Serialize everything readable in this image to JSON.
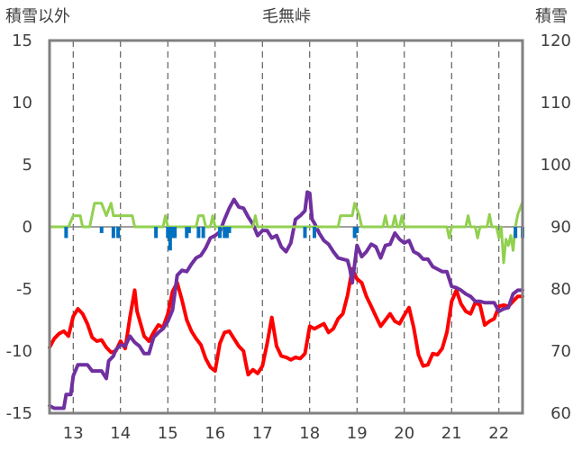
{
  "chart_data": {
    "type": "line",
    "title": "毛無峠",
    "left_axis": {
      "label": "積雪以外",
      "min": -15,
      "max": 15,
      "ticks": [
        15,
        10,
        5,
        0,
        -5,
        -10,
        -15
      ]
    },
    "right_axis": {
      "label": "積雪",
      "min": 60,
      "max": 120,
      "ticks": [
        120,
        110,
        100,
        90,
        80,
        70,
        60
      ]
    },
    "x_axis": {
      "min": 12.5,
      "max": 22.5,
      "ticks": [
        13,
        14,
        15,
        16,
        17,
        18,
        19,
        20,
        21,
        22
      ]
    },
    "grid": {
      "vertical": "dashed",
      "horizontal": "none"
    },
    "zero_line": {
      "y": 0,
      "color": "#808080"
    },
    "series": [
      {
        "color": "#ff0000",
        "axis": "left",
        "kind": "line",
        "points": [
          [
            12.5,
            -9.7
          ],
          [
            12.6,
            -9.0
          ],
          [
            12.7,
            -8.6
          ],
          [
            12.8,
            -8.4
          ],
          [
            12.9,
            -8.8
          ],
          [
            13.0,
            -7.2
          ],
          [
            13.1,
            -6.6
          ],
          [
            13.2,
            -7.0
          ],
          [
            13.3,
            -7.8
          ],
          [
            13.4,
            -8.9
          ],
          [
            13.5,
            -9.2
          ],
          [
            13.6,
            -9.1
          ],
          [
            13.7,
            -9.7
          ],
          [
            13.8,
            -10.1
          ],
          [
            13.9,
            -10.0
          ],
          [
            14.0,
            -9.2
          ],
          [
            14.1,
            -9.8
          ],
          [
            14.2,
            -7.3
          ],
          [
            14.3,
            -5.1
          ],
          [
            14.35,
            -6.8
          ],
          [
            14.5,
            -8.8
          ],
          [
            14.6,
            -9.2
          ],
          [
            14.7,
            -8.5
          ],
          [
            14.8,
            -7.9
          ],
          [
            14.9,
            -8.1
          ],
          [
            15.0,
            -7.0
          ],
          [
            15.1,
            -5.2
          ],
          [
            15.2,
            -4.5
          ],
          [
            15.3,
            -5.9
          ],
          [
            15.4,
            -7.5
          ],
          [
            15.5,
            -8.4
          ],
          [
            15.6,
            -9.0
          ],
          [
            15.7,
            -9.5
          ],
          [
            15.8,
            -10.6
          ],
          [
            15.9,
            -11.3
          ],
          [
            16.0,
            -11.6
          ],
          [
            16.1,
            -9.4
          ],
          [
            16.2,
            -8.5
          ],
          [
            16.3,
            -8.4
          ],
          [
            16.4,
            -9.0
          ],
          [
            16.5,
            -9.6
          ],
          [
            16.6,
            -10.0
          ],
          [
            16.65,
            -11.0
          ],
          [
            16.7,
            -11.9
          ],
          [
            16.8,
            -11.5
          ],
          [
            16.9,
            -11.8
          ],
          [
            17.0,
            -11.2
          ],
          [
            17.1,
            -9.4
          ],
          [
            17.2,
            -7.3
          ],
          [
            17.3,
            -9.6
          ],
          [
            17.4,
            -10.4
          ],
          [
            17.5,
            -10.5
          ],
          [
            17.6,
            -10.7
          ],
          [
            17.7,
            -10.5
          ],
          [
            17.8,
            -10.6
          ],
          [
            17.9,
            -10.2
          ],
          [
            18.0,
            -8.0
          ],
          [
            18.1,
            -8.2
          ],
          [
            18.2,
            -8.0
          ],
          [
            18.3,
            -7.8
          ],
          [
            18.4,
            -8.5
          ],
          [
            18.5,
            -8.2
          ],
          [
            18.6,
            -7.4
          ],
          [
            18.7,
            -7.0
          ],
          [
            18.8,
            -5.5
          ],
          [
            18.9,
            -3.4
          ],
          [
            19.0,
            -4.2
          ],
          [
            19.1,
            -4.5
          ],
          [
            19.2,
            -5.6
          ],
          [
            19.3,
            -6.4
          ],
          [
            19.4,
            -7.2
          ],
          [
            19.5,
            -8.0
          ],
          [
            19.6,
            -7.5
          ],
          [
            19.7,
            -7.0
          ],
          [
            19.8,
            -7.6
          ],
          [
            19.9,
            -7.8
          ],
          [
            20.0,
            -7.1
          ],
          [
            20.1,
            -6.5
          ],
          [
            20.2,
            -8.1
          ],
          [
            20.3,
            -10.3
          ],
          [
            20.4,
            -11.2
          ],
          [
            20.5,
            -11.1
          ],
          [
            20.6,
            -10.2
          ],
          [
            20.7,
            -10.3
          ],
          [
            20.8,
            -9.8
          ],
          [
            20.9,
            -8.5
          ],
          [
            21.0,
            -6.0
          ],
          [
            21.1,
            -5.1
          ],
          [
            21.2,
            -6.2
          ],
          [
            21.3,
            -6.8
          ],
          [
            21.4,
            -7.0
          ],
          [
            21.5,
            -6.1
          ],
          [
            21.6,
            -6.3
          ],
          [
            21.7,
            -7.9
          ],
          [
            21.8,
            -7.6
          ],
          [
            21.9,
            -7.4
          ],
          [
            22.0,
            -6.4
          ],
          [
            22.1,
            -6.3
          ],
          [
            22.2,
            -6.4
          ],
          [
            22.3,
            -6.0
          ],
          [
            22.4,
            -5.6
          ],
          [
            22.5,
            -5.6
          ]
        ]
      },
      {
        "color": "#7030a0",
        "axis": "left",
        "kind": "line",
        "points": [
          [
            12.5,
            -14.4
          ],
          [
            12.6,
            -14.6
          ],
          [
            12.8,
            -14.6
          ],
          [
            12.85,
            -13.5
          ],
          [
            12.95,
            -13.5
          ],
          [
            13.0,
            -12.0
          ],
          [
            13.1,
            -11.1
          ],
          [
            13.3,
            -11.1
          ],
          [
            13.4,
            -11.6
          ],
          [
            13.6,
            -11.6
          ],
          [
            13.7,
            -12.2
          ],
          [
            13.75,
            -10.8
          ],
          [
            13.85,
            -10.4
          ],
          [
            13.9,
            -9.9
          ],
          [
            14.0,
            -9.5
          ],
          [
            14.1,
            -9.6
          ],
          [
            14.2,
            -8.8
          ],
          [
            14.3,
            -9.3
          ],
          [
            14.4,
            -9.6
          ],
          [
            14.5,
            -10.2
          ],
          [
            14.6,
            -10.2
          ],
          [
            14.7,
            -8.9
          ],
          [
            14.8,
            -8.5
          ],
          [
            14.9,
            -8.2
          ],
          [
            15.0,
            -7.6
          ],
          [
            15.1,
            -6.7
          ],
          [
            15.2,
            -3.9
          ],
          [
            15.3,
            -3.5
          ],
          [
            15.4,
            -3.6
          ],
          [
            15.5,
            -3.0
          ],
          [
            15.6,
            -2.5
          ],
          [
            15.7,
            -2.3
          ],
          [
            15.8,
            -1.7
          ],
          [
            15.9,
            -0.9
          ],
          [
            16.0,
            -0.7
          ],
          [
            16.1,
            -0.4
          ],
          [
            16.2,
            0.6
          ],
          [
            16.3,
            1.5
          ],
          [
            16.4,
            2.2
          ],
          [
            16.5,
            1.6
          ],
          [
            16.6,
            1.5
          ],
          [
            16.7,
            0.8
          ],
          [
            16.8,
            0.2
          ],
          [
            16.9,
            -0.7
          ],
          [
            17.0,
            -0.3
          ],
          [
            17.1,
            -0.3
          ],
          [
            17.2,
            -0.9
          ],
          [
            17.3,
            -0.7
          ],
          [
            17.4,
            -1.6
          ],
          [
            17.5,
            -2.0
          ],
          [
            17.6,
            -1.3
          ],
          [
            17.7,
            0.6
          ],
          [
            17.8,
            0.9
          ],
          [
            17.9,
            1.3
          ],
          [
            17.95,
            2.8
          ],
          [
            18.0,
            2.7
          ],
          [
            18.05,
            0.6
          ],
          [
            18.1,
            0.3
          ],
          [
            18.2,
            -0.5
          ],
          [
            18.3,
            -1.1
          ],
          [
            18.4,
            -1.4
          ],
          [
            18.5,
            -2.0
          ],
          [
            18.6,
            -2.5
          ],
          [
            18.7,
            -2.6
          ],
          [
            18.8,
            -2.7
          ],
          [
            18.85,
            -3.4
          ],
          [
            18.9,
            -4.5
          ],
          [
            19.0,
            -1.5
          ],
          [
            19.1,
            -2.4
          ],
          [
            19.2,
            -2.0
          ],
          [
            19.3,
            -1.4
          ],
          [
            19.4,
            -1.6
          ],
          [
            19.5,
            -2.5
          ],
          [
            19.6,
            -1.5
          ],
          [
            19.7,
            -1.4
          ],
          [
            19.8,
            -0.5
          ],
          [
            19.9,
            -1.0
          ],
          [
            20.0,
            -1.3
          ],
          [
            20.1,
            -1.1
          ],
          [
            20.2,
            -2.0
          ],
          [
            20.3,
            -2.2
          ],
          [
            20.4,
            -2.6
          ],
          [
            20.5,
            -2.6
          ],
          [
            20.6,
            -3.2
          ],
          [
            20.7,
            -3.4
          ],
          [
            20.8,
            -3.6
          ],
          [
            20.9,
            -3.6
          ],
          [
            21.0,
            -4.8
          ],
          [
            21.1,
            -4.9
          ],
          [
            21.2,
            -5.1
          ],
          [
            21.3,
            -5.4
          ],
          [
            21.4,
            -5.6
          ],
          [
            21.5,
            -6.0
          ],
          [
            21.6,
            -6.0
          ],
          [
            21.7,
            -6.1
          ],
          [
            21.8,
            -6.1
          ],
          [
            21.9,
            -6.1
          ],
          [
            22.0,
            -6.8
          ],
          [
            22.1,
            -6.6
          ],
          [
            22.2,
            -6.5
          ],
          [
            22.3,
            -5.4
          ],
          [
            22.4,
            -5.1
          ],
          [
            22.5,
            -5.1
          ]
        ]
      },
      {
        "color": "#92d050",
        "axis": "left",
        "kind": "line",
        "points": [
          [
            12.5,
            0
          ],
          [
            12.9,
            0
          ],
          [
            13.0,
            0.9
          ],
          [
            13.15,
            0.9
          ],
          [
            13.2,
            0
          ],
          [
            13.35,
            0
          ],
          [
            13.45,
            1.9
          ],
          [
            13.6,
            1.9
          ],
          [
            13.7,
            0.9
          ],
          [
            13.8,
            1.9
          ],
          [
            13.85,
            0.9
          ],
          [
            14.25,
            0.9
          ],
          [
            14.3,
            0
          ],
          [
            14.9,
            0
          ],
          [
            14.95,
            0.9
          ],
          [
            15.0,
            0
          ],
          [
            15.6,
            0
          ],
          [
            15.65,
            0.9
          ],
          [
            15.75,
            0.9
          ],
          [
            15.8,
            0
          ],
          [
            15.9,
            0
          ],
          [
            15.95,
            0.9
          ],
          [
            16.0,
            0
          ],
          [
            16.8,
            0
          ],
          [
            16.85,
            0.9
          ],
          [
            16.9,
            0
          ],
          [
            18.6,
            0
          ],
          [
            18.65,
            0.9
          ],
          [
            18.9,
            0.9
          ],
          [
            18.95,
            1.9
          ],
          [
            19.05,
            0.9
          ],
          [
            19.1,
            0
          ],
          [
            19.55,
            0
          ],
          [
            19.6,
            0.9
          ],
          [
            19.65,
            0
          ],
          [
            19.75,
            0
          ],
          [
            19.8,
            0.9
          ],
          [
            19.85,
            0
          ],
          [
            19.9,
            0
          ],
          [
            19.95,
            0.9
          ],
          [
            20.0,
            0
          ],
          [
            20.9,
            0
          ],
          [
            20.95,
            -0.9
          ],
          [
            21.0,
            0
          ],
          [
            21.3,
            0
          ],
          [
            21.35,
            0.9
          ],
          [
            21.4,
            0
          ],
          [
            21.5,
            0
          ],
          [
            21.55,
            -0.9
          ],
          [
            21.6,
            0
          ],
          [
            21.75,
            0
          ],
          [
            21.8,
            1.0
          ],
          [
            21.85,
            0
          ],
          [
            21.95,
            0
          ],
          [
            22.0,
            -0.9
          ],
          [
            22.05,
            0
          ],
          [
            22.1,
            -2.9
          ],
          [
            22.15,
            -1.0
          ],
          [
            22.2,
            -1.5
          ],
          [
            22.25,
            -0.7
          ],
          [
            22.3,
            -1.9
          ],
          [
            22.35,
            0
          ],
          [
            22.4,
            1.0
          ],
          [
            22.5,
            2.0
          ]
        ]
      },
      {
        "color": "#0070c0",
        "axis": "left",
        "kind": "bar",
        "bars": [
          [
            12.85,
            -0.9
          ],
          [
            13.6,
            -0.5
          ],
          [
            13.85,
            -0.9
          ],
          [
            13.95,
            -0.9
          ],
          [
            14.75,
            -0.9
          ],
          [
            15.0,
            -0.9
          ],
          [
            15.05,
            -1.9
          ],
          [
            15.1,
            -0.9
          ],
          [
            15.15,
            -0.9
          ],
          [
            15.4,
            -0.9
          ],
          [
            15.45,
            -0.5
          ],
          [
            15.65,
            -0.9
          ],
          [
            15.75,
            -0.9
          ],
          [
            16.1,
            -0.9
          ],
          [
            16.2,
            -0.9
          ],
          [
            16.25,
            -0.9
          ],
          [
            16.3,
            -0.5
          ],
          [
            17.9,
            -0.9
          ],
          [
            18.1,
            -0.9
          ],
          [
            18.95,
            -0.9
          ],
          [
            19.0,
            -0.5
          ],
          [
            22.35,
            -0.9
          ],
          [
            22.5,
            -0.9
          ]
        ]
      }
    ]
  }
}
